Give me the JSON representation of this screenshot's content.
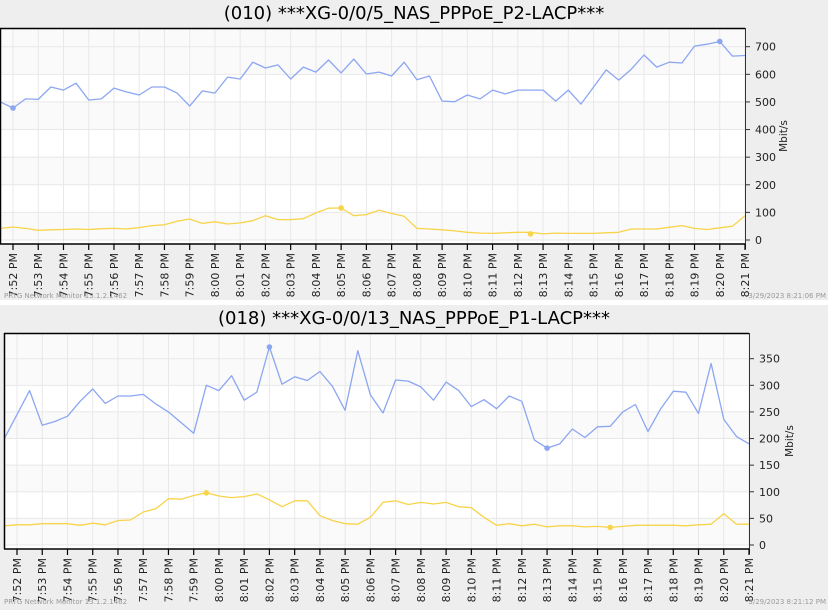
{
  "charts": [
    {
      "title": "(010) ***XG-0/0/5_NAS_PPPoE_P2-LACP***",
      "footer_left": "PRTG Network Monitor 13.1.2.1462",
      "footer_right": "3/29/2023 8:21:06 PM",
      "ylabel": "Mbit/s",
      "colors": {
        "traffic_total": "#8ca6f2",
        "traffic_secondary": "#f8d44a",
        "grid": "#e8e8e8",
        "band": "#fafafa"
      }
    },
    {
      "title": "(018) ***XG-0/0/13_NAS_PPPoE_P1-LACP***",
      "footer_left": "PRTG Network Monitor 13.1.2.1462",
      "footer_right": "3/29/2023 8:21:12 PM",
      "ylabel": "Mbit/s",
      "colors": {
        "traffic_total": "#8ca6f2",
        "traffic_secondary": "#f8d44a",
        "grid": "#e8e8e8",
        "band": "#fafafa"
      }
    }
  ],
  "chart_data": [
    {
      "type": "line",
      "title": "(010) ***XG-0/0/5_NAS_PPPoE_P2-LACP***",
      "xlabel": "",
      "ylabel": "Mbit/s",
      "ylim": [
        0,
        760
      ],
      "yticks": [
        0,
        100,
        200,
        300,
        400,
        500,
        600,
        700
      ],
      "x_tick_labels": [
        "7:52 PM",
        "7:53 PM",
        "7:54 PM",
        "7:55 PM",
        "7:56 PM",
        "7:57 PM",
        "7:58 PM",
        "7:59 PM",
        "8:00 PM",
        "8:01 PM",
        "8:02 PM",
        "8:03 PM",
        "8:04 PM",
        "8:05 PM",
        "8:06 PM",
        "8:07 PM",
        "8:08 PM",
        "8:09 PM",
        "8:10 PM",
        "8:11 PM",
        "8:12 PM",
        "8:13 PM",
        "8:14 PM",
        "8:15 PM",
        "8:16 PM",
        "8:17 PM",
        "8:18 PM",
        "8:19 PM",
        "8:20 PM",
        "8:21 PM"
      ],
      "x_minutes_from_7_52": [
        -0.5,
        0,
        0.5,
        1,
        1.5,
        2,
        2.5,
        3,
        3.5,
        4,
        4.5,
        5,
        5.5,
        6,
        6.5,
        7,
        7.5,
        8,
        8.5,
        9,
        9.5,
        10,
        10.5,
        11,
        11.5,
        12,
        12.5,
        13,
        13.5,
        14,
        14.5,
        15,
        15.5,
        16,
        16.5,
        17,
        17.5,
        18,
        18.5,
        19,
        19.5,
        20,
        20.5,
        21,
        21.5,
        22,
        22.5,
        23,
        23.5,
        24,
        24.5,
        25,
        25.5,
        26,
        26.5,
        27,
        27.5,
        28,
        28.5,
        29
      ],
      "grid": true,
      "legend": "none",
      "series": [
        {
          "name": "Traffic Total (blue)",
          "color": "#8ca6f2",
          "values": [
            500,
            478,
            511,
            509,
            554,
            543,
            568,
            507,
            511,
            550,
            536,
            525,
            554,
            554,
            532,
            485,
            540,
            532,
            590,
            583,
            644,
            623,
            634,
            583,
            626,
            608,
            652,
            605,
            655,
            601,
            608,
            594,
            644,
            580,
            594,
            503,
            501,
            525,
            511,
            543,
            529,
            543,
            543,
            543,
            503,
            543,
            492,
            554,
            616,
            579,
            619,
            670,
            626,
            644,
            641,
            702,
            709,
            719,
            666,
            668
          ],
          "marker": {
            "x_minutes": 0,
            "value": 478,
            "note": "min"
          },
          "marker2": {
            "x_minutes": 28,
            "value": 719,
            "note": "max"
          }
        },
        {
          "name": "Traffic Secondary (yellow)",
          "color": "#f8d44a",
          "values": [
            42,
            47,
            42,
            35,
            37,
            38,
            40,
            38,
            41,
            42,
            40,
            45,
            52,
            55,
            68,
            76,
            60,
            66,
            58,
            62,
            70,
            88,
            74,
            74,
            77,
            98,
            115,
            116,
            88,
            92,
            108,
            96,
            86,
            42,
            40,
            37,
            33,
            28,
            25,
            24,
            26,
            28,
            28,
            22,
            25,
            24,
            24,
            24,
            26,
            28,
            40,
            40,
            40,
            46,
            52,
            42,
            38,
            44,
            50,
            88
          ],
          "marker": {
            "x_minutes": 13,
            "value": 116,
            "note": "max"
          },
          "marker2": {
            "x_minutes": 20.5,
            "value": 22,
            "note": "min"
          }
        }
      ]
    },
    {
      "type": "line",
      "title": "(018) ***XG-0/0/13_NAS_PPPoE_P1-LACP***",
      "xlabel": "",
      "ylabel": "Mbit/s",
      "ylim": [
        0,
        385
      ],
      "yticks": [
        0,
        50,
        100,
        150,
        200,
        250,
        300,
        350
      ],
      "x_tick_labels": [
        "7:52 PM",
        "7:53 PM",
        "7:54 PM",
        "7:55 PM",
        "7:56 PM",
        "7:57 PM",
        "7:58 PM",
        "7:59 PM",
        "8:00 PM",
        "8:01 PM",
        "8:02 PM",
        "8:03 PM",
        "8:04 PM",
        "8:05 PM",
        "8:06 PM",
        "8:07 PM",
        "8:08 PM",
        "8:09 PM",
        "8:10 PM",
        "8:11 PM",
        "8:12 PM",
        "8:13 PM",
        "8:14 PM",
        "8:15 PM",
        "8:16 PM",
        "8:17 PM",
        "8:18 PM",
        "8:19 PM",
        "8:20 PM",
        "8:21 PM"
      ],
      "x_minutes_from_7_52": [
        -0.5,
        0,
        0.5,
        1,
        1.5,
        2,
        2.5,
        3,
        3.5,
        4,
        4.5,
        5,
        5.5,
        6,
        6.5,
        7,
        7.5,
        8,
        8.5,
        9,
        9.5,
        10,
        10.5,
        11,
        11.5,
        12,
        12.5,
        13,
        13.5,
        14,
        14.5,
        15,
        15.5,
        16,
        16.5,
        17,
        17.5,
        18,
        18.5,
        19,
        19.5,
        20,
        20.5,
        21,
        21.5,
        22,
        22.5,
        23,
        23.5,
        24,
        24.5,
        25,
        25.5,
        26,
        26.5,
        27,
        27.5,
        28,
        28.5,
        29
      ],
      "grid": true,
      "legend": "none",
      "series": [
        {
          "name": "Traffic Total (blue)",
          "color": "#8ca6f2",
          "values": [
            200,
            245,
            290,
            225,
            232,
            242,
            270,
            293,
            266,
            280,
            280,
            283,
            265,
            250,
            230,
            210,
            300,
            290,
            318,
            272,
            287,
            372,
            302,
            316,
            309,
            326,
            298,
            253,
            365,
            282,
            248,
            310,
            308,
            297,
            272,
            306,
            290,
            260,
            273,
            256,
            280,
            270,
            197,
            182,
            190,
            218,
            202,
            222,
            223,
            250,
            264,
            213,
            256,
            289,
            287,
            247,
            341,
            236,
            204,
            190
          ],
          "marker": {
            "x_minutes": 10,
            "value": 372,
            "note": "max"
          },
          "marker2": {
            "x_minutes": 21,
            "value": 182,
            "note": "min"
          }
        },
        {
          "name": "Traffic Secondary (yellow)",
          "color": "#f8d44a",
          "values": [
            36,
            38,
            38,
            40,
            40,
            40,
            37,
            41,
            38,
            46,
            47,
            62,
            68,
            87,
            86,
            93,
            98,
            92,
            89,
            91,
            96,
            85,
            72,
            83,
            83,
            55,
            46,
            40,
            39,
            52,
            80,
            83,
            76,
            80,
            77,
            80,
            72,
            70,
            52,
            37,
            40,
            36,
            39,
            34,
            36,
            36,
            34,
            35,
            33,
            35,
            37,
            37,
            37,
            37,
            36,
            38,
            39,
            59,
            39,
            39
          ],
          "marker": {
            "x_minutes": 7.5,
            "value": 98,
            "note": "max"
          },
          "marker2": {
            "x_minutes": 23.5,
            "value": 33,
            "note": "min"
          }
        }
      ]
    }
  ]
}
